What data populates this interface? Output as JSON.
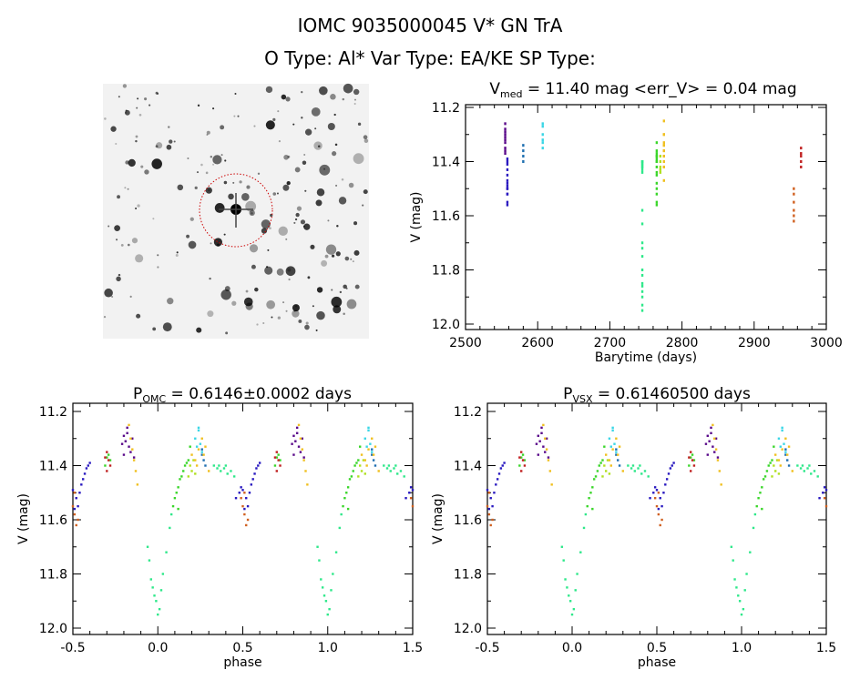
{
  "header": {
    "title": "IOMC 9035000045     V* GN TrA",
    "subtitle": "O Type: Al*  Var Type: EA/KE  SP Type:"
  },
  "chart_data": [
    {
      "type": "scatter",
      "panel": "time",
      "title_prefix": "V",
      "title_sub": "med",
      "title_rest": " = 11.40 mag <err_V> = 0.04 mag",
      "xlabel": "Barytime (days)",
      "ylabel": "V (mag)",
      "xlim": [
        2500,
        3000
      ],
      "ylim": [
        12.0,
        11.2
      ],
      "xticks": [
        2500,
        2600,
        2700,
        2800,
        2900,
        3000
      ],
      "yticks": [
        11.2,
        11.4,
        11.6,
        11.8,
        12.0
      ],
      "grid": false
    },
    {
      "type": "scatter",
      "panel": "phase-omc",
      "title_prefix": "P",
      "title_sub": "OMC",
      "title_rest": " = 0.6146±0.0002 days",
      "xlabel": "phase",
      "ylabel": "V (mag)",
      "xlim": [
        -0.5,
        1.5
      ],
      "ylim": [
        12.0,
        11.2
      ],
      "xticks": [
        -0.5,
        0.0,
        0.5,
        1.0,
        1.5
      ],
      "yticks": [
        11.2,
        11.4,
        11.6,
        11.8,
        12.0
      ],
      "grid": false
    },
    {
      "type": "scatter",
      "panel": "phase-vsx",
      "title_prefix": "P",
      "title_sub": "VSX",
      "title_rest": " = 0.61460500 days",
      "xlabel": "phase",
      "ylabel": "V (mag)",
      "xlim": [
        -0.5,
        1.5
      ],
      "ylim": [
        12.0,
        11.2
      ],
      "xticks": [
        -0.5,
        0.0,
        0.5,
        1.0,
        1.5
      ],
      "yticks": [
        11.2,
        11.4,
        11.6,
        11.8,
        12.0
      ],
      "grid": false
    }
  ],
  "groups": [
    {
      "t": 2555,
      "color": "#5a0a8a",
      "points": [
        [
          0.8,
          11.29
        ],
        [
          0.81,
          11.31
        ],
        [
          0.82,
          11.28
        ],
        [
          0.83,
          11.33
        ],
        [
          0.84,
          11.35
        ],
        [
          0.85,
          11.3
        ],
        [
          0.79,
          11.32
        ],
        [
          0.82,
          11.26
        ],
        [
          0.86,
          11.37
        ],
        [
          0.8,
          11.36
        ]
      ]
    },
    {
      "t": 2558,
      "color": "#2a1ac0",
      "points": [
        [
          0.5,
          11.49
        ],
        [
          0.52,
          11.52
        ],
        [
          0.54,
          11.5
        ],
        [
          0.55,
          11.47
        ],
        [
          0.56,
          11.45
        ],
        [
          0.57,
          11.43
        ],
        [
          0.58,
          11.41
        ],
        [
          0.59,
          11.4
        ],
        [
          0.53,
          11.55
        ],
        [
          0.51,
          11.56
        ],
        [
          0.49,
          11.48
        ],
        [
          0.6,
          11.39
        ],
        [
          0.48,
          11.5
        ],
        [
          0.46,
          11.52
        ]
      ]
    },
    {
      "t": 2580,
      "color": "#1f6fb0",
      "points": [
        [
          0.26,
          11.36
        ],
        [
          0.27,
          11.38
        ],
        [
          0.28,
          11.4
        ],
        [
          0.26,
          11.34
        ]
      ]
    },
    {
      "t": 2607,
      "color": "#3ad6e6",
      "points": [
        [
          0.22,
          11.3
        ],
        [
          0.23,
          11.33
        ],
        [
          0.24,
          11.27
        ],
        [
          0.25,
          11.32
        ],
        [
          0.26,
          11.35
        ],
        [
          0.24,
          11.26
        ]
      ]
    },
    {
      "t": 2745,
      "color": "#2ee88a",
      "points": [
        [
          0.96,
          11.82
        ],
        [
          0.97,
          11.85
        ],
        [
          0.98,
          11.88
        ],
        [
          0.99,
          11.9
        ],
        [
          0.0,
          11.95
        ],
        [
          0.01,
          11.93
        ],
        [
          0.02,
          11.86
        ],
        [
          0.03,
          11.8
        ],
        [
          0.05,
          11.72
        ],
        [
          0.07,
          11.63
        ],
        [
          0.33,
          11.4
        ],
        [
          0.35,
          11.41
        ],
        [
          0.37,
          11.42
        ],
        [
          0.39,
          11.41
        ],
        [
          0.41,
          11.43
        ],
        [
          0.43,
          11.42
        ],
        [
          0.45,
          11.44
        ],
        [
          0.36,
          11.4
        ],
        [
          0.4,
          11.4
        ],
        [
          0.94,
          11.7
        ],
        [
          0.95,
          11.75
        ],
        [
          0.08,
          11.58
        ]
      ]
    },
    {
      "t": 2765,
      "color": "#3ad62a",
      "points": [
        [
          0.09,
          11.55
        ],
        [
          0.1,
          11.52
        ],
        [
          0.11,
          11.5
        ],
        [
          0.12,
          11.48
        ],
        [
          0.13,
          11.45
        ],
        [
          0.14,
          11.44
        ],
        [
          0.15,
          11.42
        ],
        [
          0.16,
          11.4
        ],
        [
          0.17,
          11.39
        ],
        [
          0.18,
          11.38
        ],
        [
          0.7,
          11.37
        ],
        [
          0.71,
          11.36
        ],
        [
          0.72,
          11.38
        ],
        [
          0.69,
          11.4
        ],
        [
          0.12,
          11.56
        ],
        [
          0.19,
          11.33
        ]
      ]
    },
    {
      "t": 2770,
      "color": "#b0e020",
      "points": [
        [
          0.19,
          11.4
        ],
        [
          0.2,
          11.42
        ],
        [
          0.21,
          11.38
        ],
        [
          0.22,
          11.43
        ],
        [
          0.18,
          11.44
        ]
      ]
    },
    {
      "t": 2775,
      "color": "#f0c020",
      "points": [
        [
          0.2,
          11.36
        ],
        [
          0.22,
          11.38
        ],
        [
          0.24,
          11.34
        ],
        [
          0.26,
          11.3
        ],
        [
          0.28,
          11.33
        ],
        [
          0.3,
          11.42
        ],
        [
          0.83,
          11.25
        ],
        [
          0.84,
          11.3
        ],
        [
          0.85,
          11.34
        ],
        [
          0.86,
          11.38
        ],
        [
          0.87,
          11.42
        ],
        [
          0.88,
          11.47
        ],
        [
          0.23,
          11.4
        ],
        [
          0.27,
          11.36
        ]
      ]
    },
    {
      "t": 2955,
      "color": "#d06020",
      "points": [
        [
          0.5,
          11.55
        ],
        [
          0.51,
          11.58
        ],
        [
          0.52,
          11.62
        ],
        [
          0.53,
          11.6
        ],
        [
          0.49,
          11.52
        ],
        [
          0.51,
          11.5
        ]
      ]
    },
    {
      "t": 2965,
      "color": "#c02020",
      "points": [
        [
          0.7,
          11.35
        ],
        [
          0.71,
          11.38
        ],
        [
          0.72,
          11.4
        ],
        [
          0.69,
          11.37
        ],
        [
          0.7,
          11.42
        ]
      ]
    }
  ],
  "finder": {
    "aperture_color": "#cc0000"
  }
}
